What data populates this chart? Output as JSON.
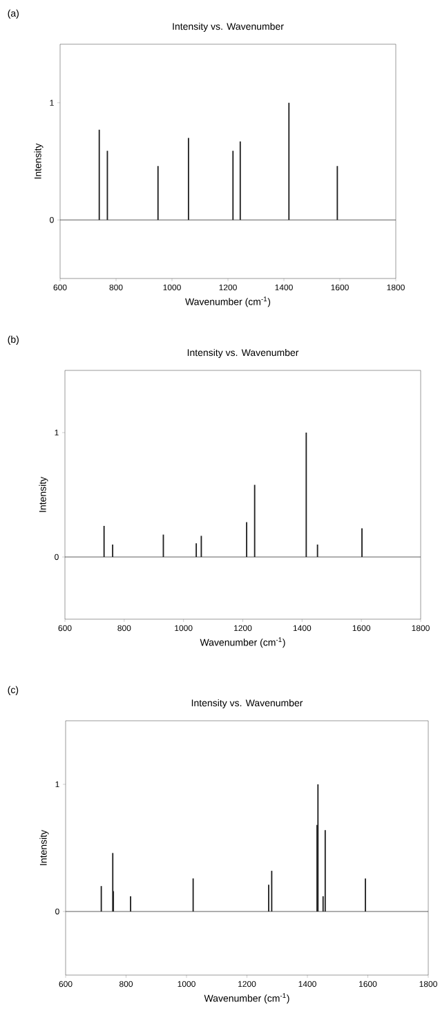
{
  "chart_data": [
    {
      "type": "bar",
      "title": "Intensity vs. Wavenumber",
      "annotations": [
        "(a)"
      ],
      "xlabel": "Wavenumber (cm$^{-1}$)",
      "ylabel": "Intensity",
      "color": "#222222",
      "x": [
        740,
        769,
        950,
        1059,
        1218,
        1244,
        1418,
        1591
      ],
      "values": [
        0.77,
        0.59,
        0.46,
        0.7,
        0.59,
        0.67,
        1.0,
        0.46
      ],
      "xlim": [
        600,
        1800
      ],
      "xticks": [
        600,
        800,
        1000,
        1200,
        1400,
        1600,
        1800
      ],
      "ylim": [
        -0.5,
        1.5
      ],
      "yticks": [
        0,
        1
      ],
      "ref_lines": [
        {
          "axis": "y",
          "value": 0
        }
      ]
    },
    {
      "type": "bar",
      "title": "Intensity vs. Wavenumber",
      "annotations": [
        "(b)"
      ],
      "xlabel": "Wavenumber (cm$^{-1}$)",
      "ylabel": "Intensity",
      "color": "#222222",
      "x": [
        732,
        761,
        932,
        1043,
        1060,
        1213,
        1240,
        1414,
        1452,
        1602
      ],
      "values": [
        0.25,
        0.1,
        0.18,
        0.11,
        0.17,
        0.28,
        0.58,
        1.0,
        0.1,
        0.23
      ],
      "xlim": [
        600,
        1800
      ],
      "xticks": [
        600,
        800,
        1000,
        1200,
        1400,
        1600,
        1800
      ],
      "ylim": [
        -0.5,
        1.5
      ],
      "yticks": [
        0,
        1
      ],
      "ref_lines": [
        {
          "axis": "y",
          "value": 0
        }
      ]
    },
    {
      "type": "bar",
      "title": "Intensity vs. Wavenumber",
      "annotations": [
        "(c)"
      ],
      "xlabel": "Wavenumber (cm$^{-1}$)",
      "ylabel": "Intensity",
      "color": "#222222",
      "x": [
        718,
        756,
        758,
        815,
        1022,
        1272,
        1282,
        1432,
        1435,
        1452,
        1459,
        1592
      ],
      "values": [
        0.2,
        0.46,
        0.16,
        0.12,
        0.26,
        0.21,
        0.32,
        0.68,
        1.0,
        0.12,
        0.64,
        0.26
      ],
      "xlim": [
        600,
        1800
      ],
      "xticks": [
        600,
        800,
        1000,
        1200,
        1400,
        1600,
        1800
      ],
      "ylim": [
        -0.5,
        1.5
      ],
      "yticks": [
        0,
        1
      ],
      "ref_lines": [
        {
          "axis": "y",
          "value": 0
        }
      ]
    }
  ]
}
